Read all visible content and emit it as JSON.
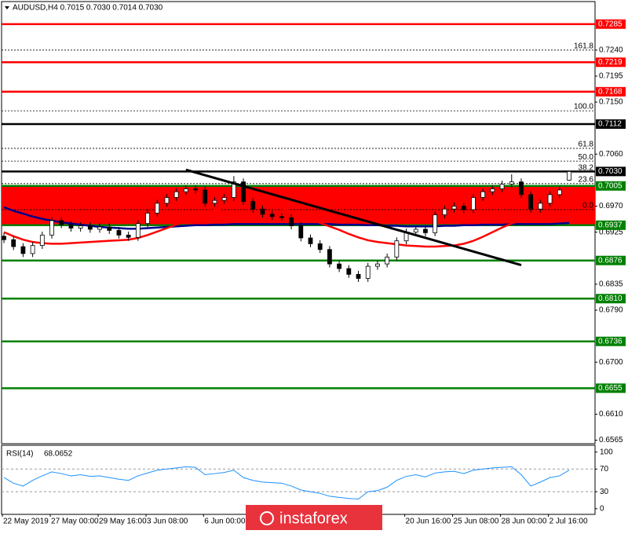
{
  "chart_data": {
    "type": "candlestick",
    "title": "AUDUSD,H4  0.7015 0.7030 0.7014 0.7030",
    "categories": [
      "22 May 2019",
      null,
      null,
      null,
      null,
      "27 May 00:00",
      null,
      null,
      null,
      null,
      "29 May 16:00",
      null,
      null,
      null,
      null,
      "3 Jun 08:00",
      null,
      null,
      null,
      null,
      null,
      "6 Jun 00:00",
      null,
      null,
      null,
      null,
      null,
      null,
      null,
      null,
      null,
      null,
      null,
      null,
      null,
      null,
      null,
      null,
      null,
      null,
      null,
      null,
      "20 Jun 16:00",
      null,
      null,
      null,
      null,
      "25 Jun 08:00",
      null,
      null,
      null,
      null,
      "28 Jun 00:00",
      null,
      null,
      null,
      null,
      "2 Jul 16:00",
      null,
      null
    ],
    "open": [
      0.6918,
      0.6912,
      0.69,
      0.6888,
      0.6902,
      0.692,
      0.6945,
      0.6938,
      0.6932,
      0.6936,
      0.693,
      0.6934,
      0.6928,
      0.692,
      0.6916,
      0.694,
      0.6958,
      0.6975,
      0.6985,
      0.6995,
      0.7,
      0.6998,
      0.6975,
      0.698,
      0.6985,
      0.7012,
      0.6978,
      0.6965,
      0.6956,
      0.6952,
      0.695,
      0.6936,
      0.6915,
      0.6905,
      0.6895,
      0.687,
      0.6862,
      0.6852,
      0.6845,
      0.6866,
      0.687,
      0.6882,
      0.691,
      0.6925,
      0.693,
      0.6924,
      0.6955,
      0.6965,
      0.697,
      0.6964,
      0.6985,
      0.6995,
      0.7,
      0.7008,
      0.7012,
      0.699,
      0.6965,
      0.6975,
      0.699,
      0.7015
    ],
    "high": [
      0.6924,
      0.6918,
      0.6906,
      0.6908,
      0.6926,
      0.6951,
      0.6951,
      0.6944,
      0.6942,
      0.6942,
      0.694,
      0.694,
      0.6934,
      0.6926,
      0.6946,
      0.6964,
      0.6981,
      0.6991,
      0.7001,
      0.7006,
      0.7006,
      0.7004,
      0.6986,
      0.6991,
      0.7022,
      0.7018,
      0.6984,
      0.6971,
      0.6962,
      0.6958,
      0.6956,
      0.6942,
      0.6921,
      0.6911,
      0.6901,
      0.6876,
      0.6868,
      0.6858,
      0.6872,
      0.6876,
      0.6888,
      0.6916,
      0.6931,
      0.6936,
      0.6936,
      0.6961,
      0.6971,
      0.6976,
      0.6976,
      0.6991,
      0.7001,
      0.7006,
      0.7014,
      0.7025,
      0.7018,
      0.6996,
      0.6981,
      0.6996,
      0.7004,
      0.703
    ],
    "low": [
      0.6906,
      0.6894,
      0.6882,
      0.6882,
      0.6896,
      0.6914,
      0.6932,
      0.6926,
      0.6926,
      0.6924,
      0.6924,
      0.6922,
      0.6914,
      0.691,
      0.691,
      0.6934,
      0.6952,
      0.6969,
      0.6979,
      0.6989,
      0.6992,
      0.6969,
      0.6969,
      0.6974,
      0.6979,
      0.6972,
      0.6959,
      0.695,
      0.6946,
      0.6944,
      0.693,
      0.6909,
      0.6899,
      0.6889,
      0.6864,
      0.6856,
      0.6846,
      0.6839,
      0.6839,
      0.686,
      0.6864,
      0.6876,
      0.6904,
      0.6919,
      0.6918,
      0.6918,
      0.6949,
      0.6959,
      0.6958,
      0.6958,
      0.6979,
      0.6989,
      0.6994,
      0.7002,
      0.6984,
      0.6959,
      0.6959,
      0.6969,
      0.6984,
      0.7014
    ],
    "close": [
      0.6912,
      0.69,
      0.6888,
      0.6902,
      0.692,
      0.6945,
      0.6938,
      0.6932,
      0.6936,
      0.693,
      0.6934,
      0.6928,
      0.692,
      0.6916,
      0.694,
      0.6958,
      0.6975,
      0.6985,
      0.6995,
      0.7,
      0.6998,
      0.6975,
      0.698,
      0.6985,
      0.7012,
      0.6978,
      0.6965,
      0.6956,
      0.6952,
      0.695,
      0.6936,
      0.6915,
      0.6905,
      0.6895,
      0.687,
      0.6862,
      0.6852,
      0.6845,
      0.6866,
      0.687,
      0.6882,
      0.691,
      0.6925,
      0.693,
      0.6924,
      0.6955,
      0.6965,
      0.697,
      0.6964,
      0.6985,
      0.6995,
      0.7,
      0.7008,
      0.7012,
      0.699,
      0.6965,
      0.6975,
      0.699,
      0.6998,
      0.703
    ],
    "ma": [
      {
        "color": "#00008b",
        "values": [
          0.6968,
          0.6962,
          0.6957,
          0.6952,
          0.6948,
          0.6945,
          0.6942,
          0.694,
          0.6938,
          0.6936,
          0.6934,
          0.6933,
          0.6932,
          0.6931,
          0.6931,
          0.6932,
          0.6933,
          0.6934,
          0.6935,
          0.6936,
          0.6937,
          0.6937,
          0.6938,
          0.6938,
          0.6939,
          0.6939,
          0.6939,
          0.6939,
          0.6939,
          0.6939,
          0.6939,
          0.6939,
          0.6939,
          0.6939,
          0.6939,
          0.6938,
          0.6938,
          0.6938,
          0.6937,
          0.6937,
          0.6936,
          0.6936,
          0.6935,
          0.6935,
          0.6935,
          0.6935,
          0.6936,
          0.6936,
          0.6937,
          0.6937,
          0.6938,
          0.6938,
          0.6938,
          0.6939,
          0.6939,
          0.6939,
          0.6939,
          0.6939,
          0.694,
          0.6941
        ]
      },
      {
        "color": "#ff0000",
        "values": [
          0.6925,
          0.6918,
          0.6912,
          0.6908,
          0.6906,
          0.6905,
          0.6905,
          0.6906,
          0.6907,
          0.6908,
          0.6909,
          0.691,
          0.6911,
          0.6912,
          0.6915,
          0.692,
          0.6926,
          0.6932,
          0.6938,
          0.6945,
          0.6952,
          0.6958,
          0.6963,
          0.6967,
          0.6971,
          0.6973,
          0.6973,
          0.6972,
          0.697,
          0.6966,
          0.6961,
          0.6955,
          0.6948,
          0.6941,
          0.6935,
          0.6929,
          0.6922,
          0.6916,
          0.6911,
          0.6908,
          0.6906,
          0.6904,
          0.6902,
          0.6901,
          0.69,
          0.69,
          0.6901,
          0.6902,
          0.6905,
          0.691,
          0.6917,
          0.6925,
          0.6933,
          0.694,
          0.6946,
          0.695,
          0.6953,
          0.6956,
          0.6959,
          0.6962
        ]
      }
    ],
    "zone": {
      "from": 0.7005,
      "to": 0.6937,
      "color": "#ff0000"
    },
    "trendline": {
      "x": [
        19,
        54
      ],
      "values": [
        0.7033,
        0.6868
      ],
      "color": "#000000"
    },
    "levels": [
      {
        "value": 0.7285,
        "label": "0.7285",
        "color": "#ff0000"
      },
      {
        "value": 0.7219,
        "label": "0.7219",
        "color": "#ff0000"
      },
      {
        "value": 0.7168,
        "label": "0.7168",
        "color": "#ff0000"
      },
      {
        "value": 0.7112,
        "label": "0.7112",
        "color": "#000000"
      },
      {
        "value": 0.703,
        "label": "0.7030",
        "color": "#000000"
      },
      {
        "value": 0.7005,
        "label": "0.7005",
        "color": "#008000"
      },
      {
        "value": 0.6937,
        "label": "0.6937",
        "color": "#008000"
      },
      {
        "value": 0.6876,
        "label": "0.6876",
        "color": "#008000"
      },
      {
        "value": 0.681,
        "label": "0.6810",
        "color": "#008000"
      },
      {
        "value": 0.6736,
        "label": "0.6736",
        "color": "#008000"
      },
      {
        "value": 0.6655,
        "label": "0.6655",
        "color": "#008000"
      }
    ],
    "fibonacci": [
      {
        "value": 0.724,
        "label": "161.8"
      },
      {
        "value": 0.7135,
        "label": "100.0"
      },
      {
        "value": 0.707,
        "label": "61.8"
      },
      {
        "value": 0.7048,
        "label": "50.0"
      },
      {
        "value": 0.7029,
        "label": "38.2"
      },
      {
        "value": 0.7009,
        "label": "23.6"
      },
      {
        "value": 0.6964,
        "label": "0.0"
      }
    ],
    "ylim": [
      0.6559,
      0.7324
    ],
    "yticks": [
      {
        "value": 0.724,
        "label": "0.7240"
      },
      {
        "value": 0.7195,
        "label": "0.7195"
      },
      {
        "value": 0.715,
        "label": "0.7150"
      },
      {
        "value": 0.706,
        "label": "0.7060"
      },
      {
        "value": 0.697,
        "label": "0.6970"
      },
      {
        "value": 0.6925,
        "label": "0.6925"
      },
      {
        "value": 0.6835,
        "label": "0.6835"
      },
      {
        "value": 0.679,
        "label": "0.6790"
      },
      {
        "value": 0.67,
        "label": "0.6700"
      },
      {
        "value": 0.661,
        "label": "0.6610"
      },
      {
        "value": 0.6565,
        "label": "0.6565"
      }
    ],
    "rsi": {
      "label": "RSI(14)",
      "color": "#1e90ff",
      "values": [
        55,
        45,
        40,
        50,
        58,
        65,
        62,
        58,
        60,
        57,
        58,
        55,
        52,
        50,
        58,
        63,
        68,
        70,
        72,
        74,
        73,
        60,
        62,
        64,
        68,
        55,
        50,
        47,
        46,
        45,
        40,
        33,
        30,
        27,
        22,
        20,
        18,
        17,
        30,
        32,
        38,
        50,
        57,
        60,
        56,
        63,
        65,
        66,
        62,
        68,
        70,
        72,
        73,
        74,
        60,
        40,
        47,
        55,
        58,
        68.0652
      ],
      "ylim": [
        -10,
        112
      ],
      "yticks": [
        100,
        70,
        30,
        0
      ],
      "dashed_levels": [
        70,
        30
      ]
    },
    "watermark": "instaforex"
  }
}
